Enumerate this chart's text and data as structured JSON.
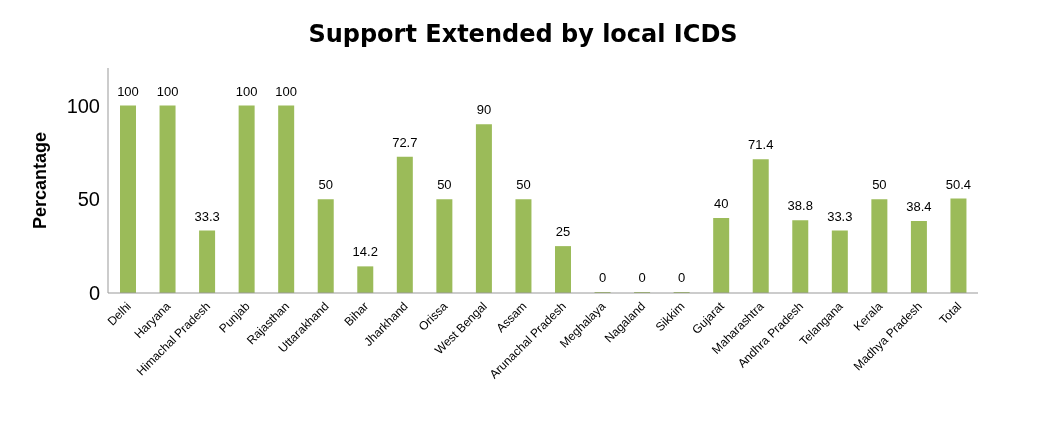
{
  "chart_data": {
    "type": "bar",
    "title": "Support Extended by local ICDS",
    "ylabel": "Percantage",
    "categories": [
      "Delhi",
      "Haryana",
      "Himachal Pradesh",
      "Punjab",
      "Rajasthan",
      "Uttarakhand",
      "Bihar",
      "Jharkhand",
      "Orissa",
      "West Bengal",
      "Assam",
      "Arunachal Pradesh",
      "Meghalaya",
      "Nagaland",
      "Sikkim",
      "Gujarat",
      "Maharashtra",
      "Andhra Pradesh",
      "Telangana",
      "Kerala",
      "Madhya Pradesh",
      "Total"
    ],
    "values": [
      100,
      100,
      33.3,
      100,
      100,
      50,
      14.2,
      72.7,
      50,
      90,
      50,
      25,
      0,
      0,
      0,
      40,
      71.4,
      38.8,
      33.3,
      50,
      38.4,
      50.4
    ],
    "color": "#9bbb59",
    "ylim": [
      0,
      120
    ],
    "yticks": [
      0,
      50,
      100
    ],
    "data_labels": true,
    "grid": false,
    "legend": false
  }
}
